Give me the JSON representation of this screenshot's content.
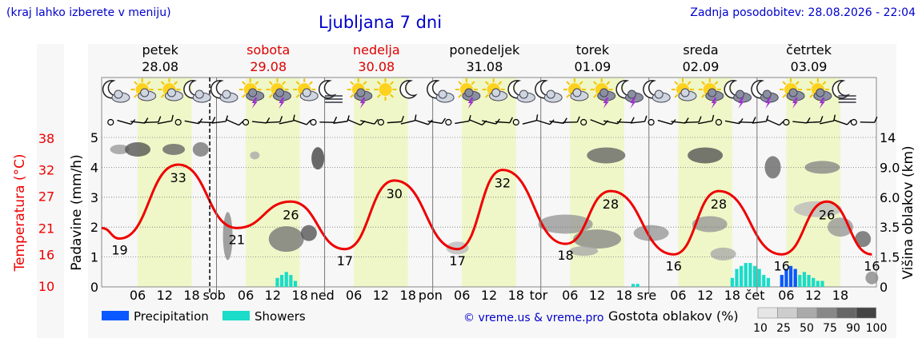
{
  "header": {
    "left_note": "(kraj lahko izberete v meniju)",
    "title": "Ljubljana 7 dni",
    "updated": "Zadnja posodobitev: 28.08.2026 - 22:04"
  },
  "days": [
    {
      "name": "petek",
      "date": "28.08",
      "weekend": false,
      "abbr": ""
    },
    {
      "name": "sobota",
      "date": "29.08",
      "weekend": true,
      "abbr": "sob"
    },
    {
      "name": "nedelja",
      "date": "30.08",
      "weekend": true,
      "abbr": "ned"
    },
    {
      "name": "ponedeljek",
      "date": "31.08",
      "weekend": false,
      "abbr": "pon"
    },
    {
      "name": "torek",
      "date": "01.09",
      "weekend": false,
      "abbr": "tor"
    },
    {
      "name": "sreda",
      "date": "02.09",
      "weekend": false,
      "abbr": "sre"
    },
    {
      "name": "četrtek",
      "date": "03.09",
      "weekend": false,
      "abbr": "čet"
    }
  ],
  "colors": {
    "weekday": "#000000",
    "weekend": "#dd0000",
    "temp_line": "#ee0000",
    "precip": "#0a58ff",
    "showers": "#1adcc8",
    "day_band": "#eff7c8",
    "night_band": "#f7f7f7"
  },
  "icons_per_day": [
    [
      "moon-cloud-icon",
      "sun-cloud-icon",
      "sun-cloud-icon",
      "moon-cloud-icon"
    ],
    [
      "moon-cloud-icon",
      "sun-storm-icon",
      "sun-storm-icon",
      "sun-cloud-icon"
    ],
    [
      "moon-fog-icon",
      "sun-storm-icon",
      "sun-icon",
      "moon-icon"
    ],
    [
      "moon-cloud-icon",
      "sun-storm-icon",
      "sun-cloud-icon",
      "moon-cloud-icon"
    ],
    [
      "moon-cloud-icon",
      "sun-cloud-icon",
      "sun-storm-icon",
      "moon-storm-icon"
    ],
    [
      "moon-cloud-icon",
      "sun-cloud-icon",
      "sun-storm-icon",
      "moon-storm-icon"
    ],
    [
      "moon-storm-icon",
      "sun-storm-icon",
      "sun-storm-icon",
      "moon-fog-icon"
    ]
  ],
  "x_ticks": [
    "06",
    "12",
    "18"
  ],
  "legend": {
    "precip": "Precipitation",
    "showers": "Showers",
    "credit": "© vreme.us & vreme.pro",
    "density_label": "Gostota oblakov (%)",
    "density_ticks": [
      "10",
      "25",
      "50",
      "75",
      "90",
      "100"
    ]
  },
  "chart_data": {
    "type": "line",
    "xlabel": "",
    "axes": {
      "temperature": {
        "label": "Temperatura (°C)",
        "ticks": [
          "10",
          "16",
          "21",
          "27",
          "32",
          "38"
        ],
        "range": [
          10,
          38
        ]
      },
      "precipitation": {
        "label": "Padavine (mm/h)",
        "ticks": [
          "0",
          "1",
          "2",
          "3",
          "4",
          "5"
        ],
        "range": [
          0,
          5
        ]
      },
      "cloud_height": {
        "label": "Višina oblakov (km)",
        "ticks": [
          "0",
          "1.5",
          "3.5",
          "6.0",
          "9.0",
          "14"
        ]
      }
    },
    "temperature_extremes": [
      {
        "hour": 2,
        "value": 19
      },
      {
        "hour": 15,
        "value": 33
      },
      {
        "hour": 28,
        "value": 21
      },
      {
        "hour": 40,
        "value": 26
      },
      {
        "hour": 52,
        "value": 17
      },
      {
        "hour": 63,
        "value": 30
      },
      {
        "hour": 77,
        "value": 17
      },
      {
        "hour": 87,
        "value": 32
      },
      {
        "hour": 101,
        "value": 18
      },
      {
        "hour": 111,
        "value": 28
      },
      {
        "hour": 125,
        "value": 16
      },
      {
        "hour": 135,
        "value": 28
      },
      {
        "hour": 149,
        "value": 16
      },
      {
        "hour": 159,
        "value": 26
      },
      {
        "hour": 169,
        "value": 16
      }
    ],
    "showers": [
      {
        "hour": 37,
        "value": 0.3
      },
      {
        "hour": 38,
        "value": 0.4
      },
      {
        "hour": 39,
        "value": 0.5
      },
      {
        "hour": 40,
        "value": 0.4
      },
      {
        "hour": 41,
        "value": 0.2
      },
      {
        "hour": 116,
        "value": 0.1
      },
      {
        "hour": 117,
        "value": 0.1
      },
      {
        "hour": 138,
        "value": 0.3
      },
      {
        "hour": 139,
        "value": 0.6
      },
      {
        "hour": 140,
        "value": 0.7
      },
      {
        "hour": 141,
        "value": 0.8
      },
      {
        "hour": 142,
        "value": 0.8
      },
      {
        "hour": 143,
        "value": 0.7
      },
      {
        "hour": 144,
        "value": 0.6
      },
      {
        "hour": 145,
        "value": 0.4
      },
      {
        "hour": 146,
        "value": 0.3
      },
      {
        "hour": 152,
        "value": 0.3
      },
      {
        "hour": 153,
        "value": 0.4
      },
      {
        "hour": 154,
        "value": 0.5
      },
      {
        "hour": 155,
        "value": 0.4
      },
      {
        "hour": 156,
        "value": 0.3
      },
      {
        "hour": 157,
        "value": 0.2
      },
      {
        "hour": 158,
        "value": 0.2
      }
    ],
    "precipitation": [
      {
        "hour": 149,
        "value": 0.4
      },
      {
        "hour": 150,
        "value": 0.6
      },
      {
        "hour": 151,
        "value": 0.7
      },
      {
        "hour": 152,
        "value": 0.6
      }
    ]
  }
}
